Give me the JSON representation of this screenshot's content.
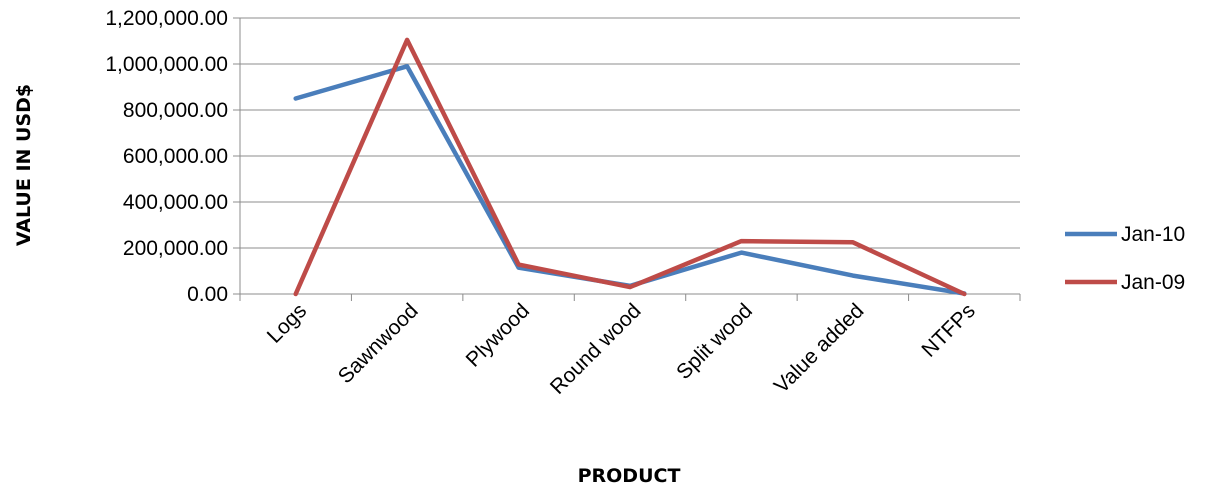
{
  "chart_data": {
    "type": "line",
    "title": "",
    "xlabel": "PRODUCT",
    "ylabel": "VALUE IN USD$",
    "categories": [
      "Logs",
      "Sawnwood",
      "Plywood",
      "Round wood",
      "Split wood",
      "Value added",
      "NTFPs"
    ],
    "ylim": [
      0,
      1200000
    ],
    "ytick_values": [
      0,
      200000,
      400000,
      600000,
      800000,
      1000000,
      1200000
    ],
    "ytick_labels": [
      "0.00",
      "200,000.00",
      "400,000.00",
      "600,000.00",
      "800,000.00",
      "1,000,000.00",
      "1,200,000.00"
    ],
    "grid": true,
    "legend_position": "right",
    "series": [
      {
        "name": "Jan-10",
        "color": "#4a7ebb",
        "values": [
          850000,
          990000,
          115000,
          35000,
          180000,
          80000,
          2000
        ]
      },
      {
        "name": "Jan-09",
        "color": "#be4b48",
        "values": [
          0,
          1105000,
          128000,
          30000,
          230000,
          225000,
          0
        ]
      }
    ]
  }
}
